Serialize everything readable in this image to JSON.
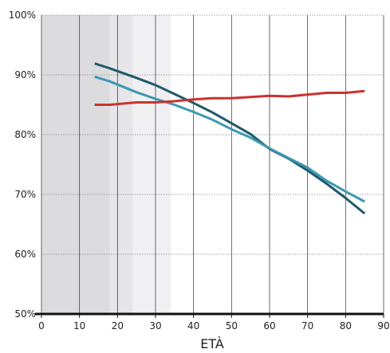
{
  "chart_data": {
    "type": "line",
    "title": "",
    "xlabel": "ETÀ",
    "ylabel": "",
    "xlim": [
      0,
      90
    ],
    "ylim": [
      50,
      100
    ],
    "xticks": [
      0,
      10,
      20,
      30,
      40,
      50,
      60,
      70,
      80,
      90
    ],
    "yticks": [
      50,
      60,
      70,
      80,
      90,
      100
    ],
    "ytick_labels": [
      "50%",
      "60%",
      "70%",
      "80%",
      "90%",
      "100%"
    ],
    "grid": {
      "vertical": true,
      "horizontal": "dotted"
    },
    "shaded_regions": [
      {
        "x": [
          0,
          18
        ],
        "color": "#dcdcde"
      },
      {
        "x": [
          18,
          24
        ],
        "color": "#e6e6e8"
      },
      {
        "x": [
          24,
          34
        ],
        "color": "#f0f0f2"
      }
    ],
    "series": [
      {
        "color": "#1f5a6e",
        "x": [
          14,
          18,
          25,
          30,
          35,
          40,
          45,
          50,
          55,
          60,
          65,
          70,
          75,
          80,
          85
        ],
        "values": [
          91.9,
          91.1,
          89.5,
          88.3,
          86.8,
          85.3,
          83.7,
          81.9,
          80.1,
          77.6,
          76.0,
          74.0,
          71.8,
          69.4,
          66.8
        ]
      },
      {
        "color": "#3d98b2",
        "x": [
          14,
          18,
          25,
          30,
          35,
          40,
          45,
          50,
          55,
          60,
          65,
          70,
          75,
          80,
          85
        ],
        "values": [
          89.7,
          88.9,
          87.1,
          86.0,
          85.0,
          83.8,
          82.5,
          80.9,
          79.5,
          77.7,
          76.1,
          74.5,
          72.3,
          70.5,
          68.8
        ]
      },
      {
        "color": "#c8332f",
        "x": [
          14,
          18,
          25,
          30,
          35,
          40,
          45,
          50,
          55,
          60,
          65,
          70,
          75,
          80,
          85
        ],
        "values": [
          85.0,
          85.0,
          85.4,
          85.4,
          85.6,
          85.9,
          86.1,
          86.1,
          86.3,
          86.5,
          86.4,
          86.7,
          87.0,
          87.0,
          87.3
        ]
      }
    ]
  }
}
